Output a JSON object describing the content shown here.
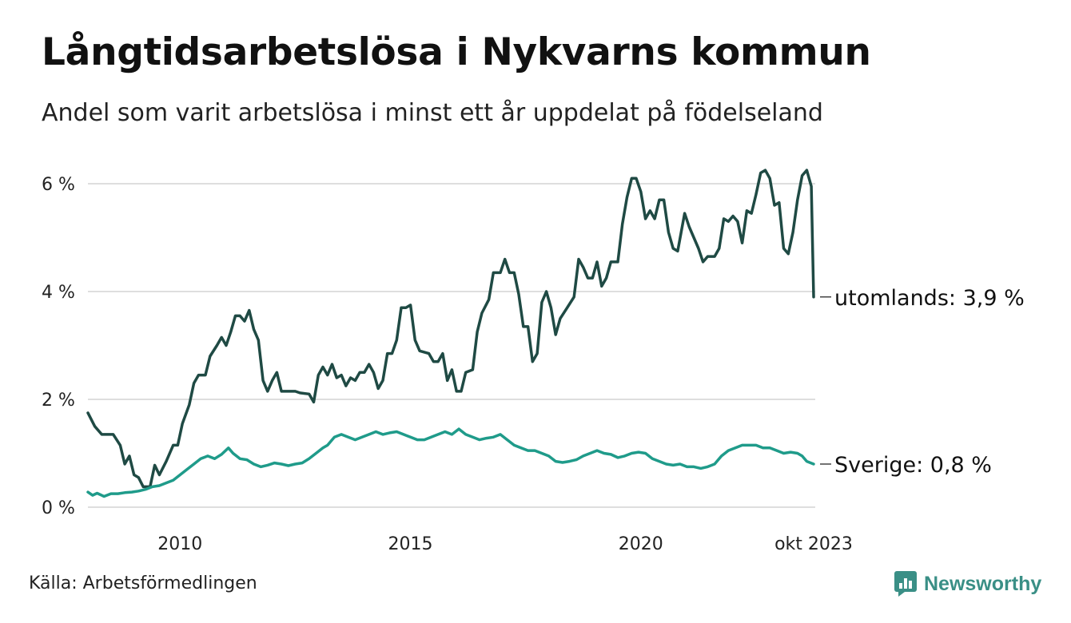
{
  "title": "Långtidsarbetslösa i Nykvarns kommun",
  "subtitle": "Andel som varit arbetslösa i minst ett år uppdelat på födelseland",
  "source": "Källa: Arbetsförmedlingen",
  "brand": "Newsworthy",
  "colors": {
    "utomlands": "#1f4a44",
    "sverige": "#1f9b8a",
    "grid": "#dedede",
    "brand": "#3a8f86"
  },
  "chart_data": {
    "type": "line",
    "title": "Långtidsarbetslösa i Nykvarns kommun",
    "xlabel": "",
    "ylabel": "",
    "ylim": [
      0,
      6.5
    ],
    "xlim": [
      2008.0,
      2023.75
    ],
    "y_ticks": [
      0,
      2,
      4,
      6
    ],
    "y_tick_labels": [
      "0 %",
      "2 %",
      "4 %",
      "6 %"
    ],
    "x_ticks": [
      2010,
      2015,
      2020,
      2023.75
    ],
    "x_tick_labels": [
      "2010",
      "2015",
      "2020",
      "okt 2023"
    ],
    "grid": true,
    "series": [
      {
        "name": "utomlands",
        "end_label": "utomlands: 3,9 %",
        "points": [
          [
            2008.0,
            1.75
          ],
          [
            2008.15,
            1.5
          ],
          [
            2008.3,
            1.35
          ],
          [
            2008.55,
            1.35
          ],
          [
            2008.7,
            1.15
          ],
          [
            2008.8,
            0.8
          ],
          [
            2008.9,
            0.95
          ],
          [
            2009.0,
            0.6
          ],
          [
            2009.1,
            0.55
          ],
          [
            2009.2,
            0.38
          ],
          [
            2009.35,
            0.38
          ],
          [
            2009.45,
            0.78
          ],
          [
            2009.55,
            0.6
          ],
          [
            2009.7,
            0.85
          ],
          [
            2009.85,
            1.15
          ],
          [
            2009.95,
            1.15
          ],
          [
            2010.05,
            1.55
          ],
          [
            2010.2,
            1.9
          ],
          [
            2010.3,
            2.3
          ],
          [
            2010.4,
            2.45
          ],
          [
            2010.55,
            2.45
          ],
          [
            2010.65,
            2.8
          ],
          [
            2010.8,
            3.0
          ],
          [
            2010.9,
            3.15
          ],
          [
            2011.0,
            3.0
          ],
          [
            2011.1,
            3.25
          ],
          [
            2011.2,
            3.55
          ],
          [
            2011.3,
            3.55
          ],
          [
            2011.4,
            3.45
          ],
          [
            2011.5,
            3.65
          ],
          [
            2011.6,
            3.3
          ],
          [
            2011.7,
            3.1
          ],
          [
            2011.8,
            2.35
          ],
          [
            2011.9,
            2.15
          ],
          [
            2012.0,
            2.35
          ],
          [
            2012.1,
            2.5
          ],
          [
            2012.2,
            2.15
          ],
          [
            2012.5,
            2.15
          ],
          [
            2012.6,
            2.12
          ],
          [
            2012.8,
            2.1
          ],
          [
            2012.9,
            1.95
          ],
          [
            2013.0,
            2.45
          ],
          [
            2013.1,
            2.6
          ],
          [
            2013.2,
            2.45
          ],
          [
            2013.3,
            2.65
          ],
          [
            2013.4,
            2.4
          ],
          [
            2013.5,
            2.45
          ],
          [
            2013.6,
            2.25
          ],
          [
            2013.7,
            2.4
          ],
          [
            2013.8,
            2.35
          ],
          [
            2013.9,
            2.5
          ],
          [
            2014.0,
            2.5
          ],
          [
            2014.1,
            2.65
          ],
          [
            2014.2,
            2.5
          ],
          [
            2014.3,
            2.2
          ],
          [
            2014.4,
            2.35
          ],
          [
            2014.5,
            2.85
          ],
          [
            2014.6,
            2.85
          ],
          [
            2014.7,
            3.1
          ],
          [
            2014.8,
            3.7
          ],
          [
            2014.9,
            3.7
          ],
          [
            2015.0,
            3.75
          ],
          [
            2015.1,
            3.1
          ],
          [
            2015.2,
            2.9
          ],
          [
            2015.4,
            2.85
          ],
          [
            2015.5,
            2.7
          ],
          [
            2015.6,
            2.7
          ],
          [
            2015.7,
            2.85
          ],
          [
            2015.8,
            2.35
          ],
          [
            2015.9,
            2.55
          ],
          [
            2016.0,
            2.15
          ],
          [
            2016.1,
            2.15
          ],
          [
            2016.2,
            2.5
          ],
          [
            2016.35,
            2.55
          ],
          [
            2016.45,
            3.25
          ],
          [
            2016.55,
            3.6
          ],
          [
            2016.7,
            3.85
          ],
          [
            2016.8,
            4.35
          ],
          [
            2016.95,
            4.35
          ],
          [
            2017.05,
            4.6
          ],
          [
            2017.15,
            4.35
          ],
          [
            2017.25,
            4.35
          ],
          [
            2017.35,
            3.95
          ],
          [
            2017.45,
            3.35
          ],
          [
            2017.55,
            3.35
          ],
          [
            2017.65,
            2.7
          ],
          [
            2017.75,
            2.85
          ],
          [
            2017.85,
            3.8
          ],
          [
            2017.95,
            4.0
          ],
          [
            2018.05,
            3.7
          ],
          [
            2018.15,
            3.2
          ],
          [
            2018.25,
            3.5
          ],
          [
            2018.4,
            3.7
          ],
          [
            2018.55,
            3.9
          ],
          [
            2018.65,
            4.6
          ],
          [
            2018.75,
            4.45
          ],
          [
            2018.85,
            4.25
          ],
          [
            2018.95,
            4.25
          ],
          [
            2019.05,
            4.55
          ],
          [
            2019.15,
            4.1
          ],
          [
            2019.25,
            4.25
          ],
          [
            2019.35,
            4.55
          ],
          [
            2019.5,
            4.55
          ],
          [
            2019.6,
            5.25
          ],
          [
            2019.7,
            5.75
          ],
          [
            2019.8,
            6.1
          ],
          [
            2019.9,
            6.1
          ],
          [
            2020.0,
            5.85
          ],
          [
            2020.1,
            5.35
          ],
          [
            2020.2,
            5.5
          ],
          [
            2020.3,
            5.35
          ],
          [
            2020.4,
            5.7
          ],
          [
            2020.5,
            5.7
          ],
          [
            2020.6,
            5.1
          ],
          [
            2020.7,
            4.8
          ],
          [
            2020.8,
            4.75
          ],
          [
            2020.95,
            5.45
          ],
          [
            2021.05,
            5.2
          ],
          [
            2021.15,
            5.0
          ],
          [
            2021.25,
            4.8
          ],
          [
            2021.35,
            4.55
          ],
          [
            2021.45,
            4.65
          ],
          [
            2021.6,
            4.65
          ],
          [
            2021.7,
            4.8
          ],
          [
            2021.8,
            5.35
          ],
          [
            2021.9,
            5.3
          ],
          [
            2022.0,
            5.4
          ],
          [
            2022.1,
            5.3
          ],
          [
            2022.2,
            4.9
          ],
          [
            2022.3,
            5.5
          ],
          [
            2022.4,
            5.45
          ],
          [
            2022.5,
            5.8
          ],
          [
            2022.6,
            6.2
          ],
          [
            2022.7,
            6.25
          ],
          [
            2022.8,
            6.1
          ],
          [
            2022.9,
            5.6
          ],
          [
            2023.0,
            5.65
          ],
          [
            2023.1,
            4.8
          ],
          [
            2023.2,
            4.7
          ],
          [
            2023.3,
            5.1
          ],
          [
            2023.4,
            5.7
          ],
          [
            2023.5,
            6.15
          ],
          [
            2023.6,
            6.25
          ],
          [
            2023.7,
            5.95
          ],
          [
            2023.75,
            3.9
          ]
        ]
      },
      {
        "name": "Sverige",
        "end_label": "Sverige: 0,8 %",
        "points": [
          [
            2008.0,
            0.28
          ],
          [
            2008.1,
            0.22
          ],
          [
            2008.2,
            0.26
          ],
          [
            2008.35,
            0.2
          ],
          [
            2008.5,
            0.25
          ],
          [
            2008.65,
            0.25
          ],
          [
            2008.8,
            0.27
          ],
          [
            2008.95,
            0.28
          ],
          [
            2009.1,
            0.3
          ],
          [
            2009.25,
            0.33
          ],
          [
            2009.4,
            0.38
          ],
          [
            2009.55,
            0.4
          ],
          [
            2009.7,
            0.45
          ],
          [
            2009.85,
            0.5
          ],
          [
            2010.0,
            0.6
          ],
          [
            2010.15,
            0.7
          ],
          [
            2010.3,
            0.8
          ],
          [
            2010.45,
            0.9
          ],
          [
            2010.6,
            0.95
          ],
          [
            2010.75,
            0.9
          ],
          [
            2010.9,
            0.98
          ],
          [
            2011.05,
            1.1
          ],
          [
            2011.15,
            1.0
          ],
          [
            2011.3,
            0.9
          ],
          [
            2011.45,
            0.88
          ],
          [
            2011.6,
            0.8
          ],
          [
            2011.75,
            0.75
          ],
          [
            2011.9,
            0.78
          ],
          [
            2012.05,
            0.82
          ],
          [
            2012.2,
            0.8
          ],
          [
            2012.35,
            0.77
          ],
          [
            2012.5,
            0.8
          ],
          [
            2012.65,
            0.82
          ],
          [
            2012.8,
            0.9
          ],
          [
            2012.95,
            1.0
          ],
          [
            2013.1,
            1.1
          ],
          [
            2013.2,
            1.15
          ],
          [
            2013.35,
            1.3
          ],
          [
            2013.5,
            1.35
          ],
          [
            2013.65,
            1.3
          ],
          [
            2013.8,
            1.25
          ],
          [
            2013.95,
            1.3
          ],
          [
            2014.1,
            1.35
          ],
          [
            2014.25,
            1.4
          ],
          [
            2014.4,
            1.35
          ],
          [
            2014.55,
            1.38
          ],
          [
            2014.7,
            1.4
          ],
          [
            2014.85,
            1.35
          ],
          [
            2015.0,
            1.3
          ],
          [
            2015.15,
            1.25
          ],
          [
            2015.3,
            1.25
          ],
          [
            2015.45,
            1.3
          ],
          [
            2015.6,
            1.35
          ],
          [
            2015.75,
            1.4
          ],
          [
            2015.9,
            1.35
          ],
          [
            2016.05,
            1.45
          ],
          [
            2016.2,
            1.35
          ],
          [
            2016.35,
            1.3
          ],
          [
            2016.5,
            1.25
          ],
          [
            2016.65,
            1.28
          ],
          [
            2016.8,
            1.3
          ],
          [
            2016.95,
            1.35
          ],
          [
            2017.1,
            1.25
          ],
          [
            2017.25,
            1.15
          ],
          [
            2017.4,
            1.1
          ],
          [
            2017.55,
            1.05
          ],
          [
            2017.7,
            1.05
          ],
          [
            2017.85,
            1.0
          ],
          [
            2018.0,
            0.95
          ],
          [
            2018.15,
            0.85
          ],
          [
            2018.3,
            0.83
          ],
          [
            2018.45,
            0.85
          ],
          [
            2018.6,
            0.88
          ],
          [
            2018.75,
            0.95
          ],
          [
            2018.9,
            1.0
          ],
          [
            2019.05,
            1.05
          ],
          [
            2019.2,
            1.0
          ],
          [
            2019.35,
            0.98
          ],
          [
            2019.5,
            0.92
          ],
          [
            2019.65,
            0.95
          ],
          [
            2019.8,
            1.0
          ],
          [
            2019.95,
            1.02
          ],
          [
            2020.1,
            1.0
          ],
          [
            2020.25,
            0.9
          ],
          [
            2020.4,
            0.85
          ],
          [
            2020.55,
            0.8
          ],
          [
            2020.7,
            0.78
          ],
          [
            2020.85,
            0.8
          ],
          [
            2021.0,
            0.75
          ],
          [
            2021.15,
            0.75
          ],
          [
            2021.3,
            0.72
          ],
          [
            2021.45,
            0.75
          ],
          [
            2021.6,
            0.8
          ],
          [
            2021.75,
            0.95
          ],
          [
            2021.9,
            1.05
          ],
          [
            2022.05,
            1.1
          ],
          [
            2022.2,
            1.15
          ],
          [
            2022.35,
            1.15
          ],
          [
            2022.5,
            1.15
          ],
          [
            2022.65,
            1.1
          ],
          [
            2022.8,
            1.1
          ],
          [
            2022.95,
            1.05
          ],
          [
            2023.1,
            1.0
          ],
          [
            2023.25,
            1.02
          ],
          [
            2023.4,
            1.0
          ],
          [
            2023.5,
            0.95
          ],
          [
            2023.6,
            0.85
          ],
          [
            2023.75,
            0.8
          ]
        ]
      }
    ]
  }
}
